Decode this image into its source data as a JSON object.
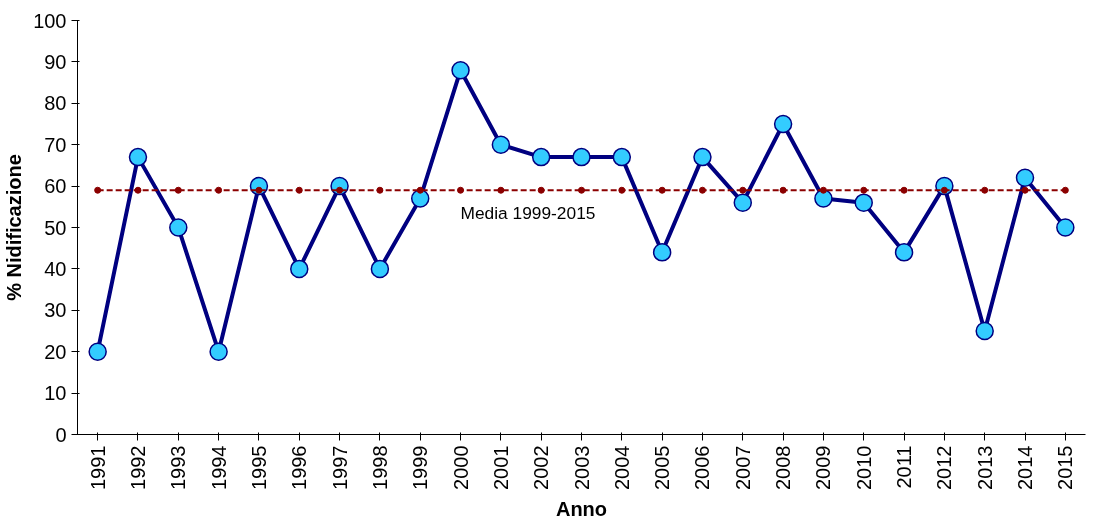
{
  "chart_data": {
    "type": "line",
    "xlabel": "Anno",
    "ylabel": "% Nidificazione",
    "categories": [
      "1991",
      "1992",
      "1993",
      "1994",
      "1995",
      "1996",
      "1997",
      "1998",
      "1999",
      "2000",
      "2001",
      "2002",
      "2003",
      "2004",
      "2005",
      "2006",
      "2007",
      "2008",
      "2009",
      "2010",
      "2011",
      "2012",
      "2013",
      "2014",
      "2015"
    ],
    "series": [
      {
        "color": "#000080",
        "colors": [
          "#33ccff",
          "#33ccff",
          "#33ccff",
          "#33ccff",
          "#33ccff",
          "#33ccff",
          "#33ccff",
          "#33ccff",
          "#33ccff",
          "#33ccff",
          "#33ccff",
          "#33ccff",
          "#33ccff",
          "#33ccff",
          "#33ccff",
          "#33ccff",
          "#33ccff",
          "#33ccff",
          "#33ccff",
          "#33ccff",
          "#33ccff",
          "#33ccff",
          "#33ccff",
          "#33ccff",
          "#33ccff"
        ],
        "values": [
          20,
          67,
          50,
          20,
          60,
          40,
          60,
          40,
          57,
          88,
          70,
          67,
          67,
          67,
          44,
          67,
          56,
          75,
          57,
          56,
          44,
          60,
          25,
          62,
          50
        ]
      },
      {
        "name": "Media 1999-2015",
        "type": "line",
        "line_style": "dashed",
        "color": "#8b0000",
        "values": [
          59,
          59,
          59,
          59,
          59,
          59,
          59,
          59,
          59,
          59,
          59,
          59,
          59,
          59,
          59,
          59,
          59,
          59,
          59,
          59,
          59,
          59,
          59,
          59,
          59
        ]
      }
    ],
    "ylim": [
      0,
      100
    ],
    "yticks": [
      0,
      10,
      20,
      30,
      40,
      50,
      60,
      70,
      80,
      90,
      100
    ],
    "grid": false,
    "marker": "circle",
    "line_style": "solid"
  }
}
